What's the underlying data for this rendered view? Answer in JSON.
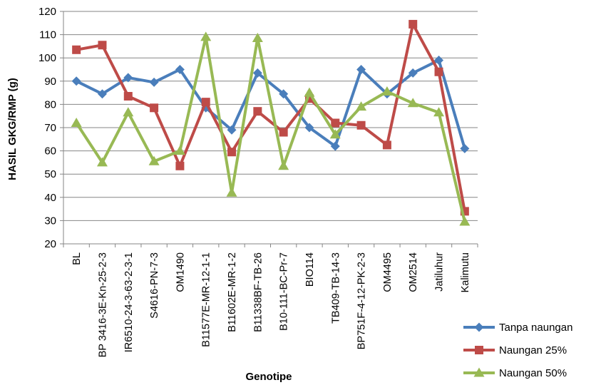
{
  "chart_data": {
    "type": "line",
    "title": "",
    "xlabel": "Genotipe",
    "ylabel": "HASIL GKG/RMP (g)",
    "ylim": [
      20,
      120
    ],
    "y_ticks": [
      20,
      30,
      40,
      50,
      60,
      70,
      80,
      90,
      100,
      110,
      120
    ],
    "grid": "horizontal",
    "legend_position": "bottom-right",
    "categories": [
      "BL",
      "BP 3416-3E-Kn-25-2-3",
      "IR6510-24-3-63-2-3-1",
      "S4616-PN-7-3",
      "OM1490",
      "B11577E-MR-12-1-1",
      "B11602E-MR-1-2",
      "B11338BF-TB-26",
      "B10-111-BC-Pr-7",
      "BIO114",
      "TB409-TB-14-3",
      "BP751F-4-12-PK-2-3",
      "OM4495",
      "OM2514",
      "Jatiluhur",
      "Kalimutu"
    ],
    "series": [
      {
        "name": "Tanpa naungan",
        "color": "#4a7ebb",
        "marker": "diamond",
        "values": [
          90,
          84.5,
          91.5,
          89.5,
          95,
          78.5,
          69,
          93.5,
          84.5,
          70,
          62,
          95,
          84.5,
          93.5,
          99,
          61
        ]
      },
      {
        "name": "Naungan 25%",
        "color": "#be4b48",
        "marker": "square",
        "values": [
          103.5,
          105.5,
          83.5,
          78.5,
          53.5,
          81,
          59.5,
          77,
          68,
          82.5,
          72,
          71,
          62.5,
          114.5,
          94,
          34
        ]
      },
      {
        "name": "Naungan 50%",
        "color": "#98b954",
        "marker": "triangle",
        "values": [
          72,
          55,
          76.5,
          55.5,
          60,
          109,
          42,
          108.5,
          53.5,
          85,
          67,
          79,
          85.5,
          80.5,
          76.5,
          29.5
        ]
      }
    ]
  }
}
